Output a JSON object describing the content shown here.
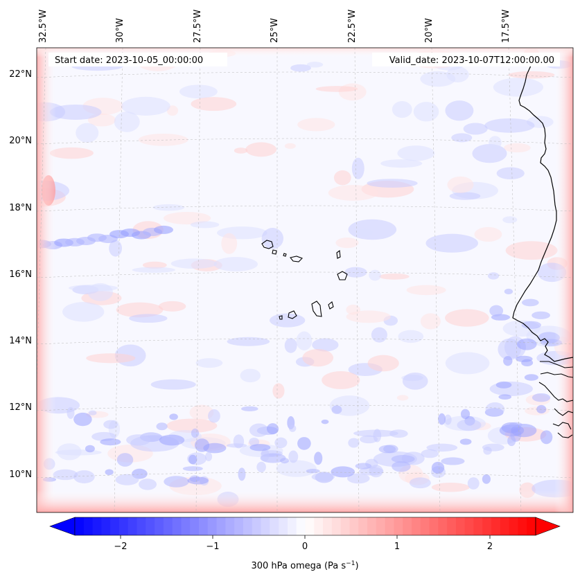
{
  "map": {
    "start_date_text": "Start date: 2023-10-05_00:00:00",
    "valid_date_text": "Valid_date: 2023-10-07T12:00:00.00",
    "lon_labels": [
      "32.5°W",
      "30°W",
      "27.5°W",
      "25°W",
      "22.5°W",
      "20°W",
      "17.5°W"
    ],
    "lat_labels": [
      "22°N",
      "20°N",
      "18°N",
      "16°N",
      "14°N",
      "12°N",
      "10°N"
    ],
    "background_color": "#f7f7ff",
    "coastline_color": "#000000",
    "gridline_style": "dashed light grey"
  },
  "colorbar": {
    "label": "300 hPa omega (Pa s",
    "label_sup": "−1",
    "label_close": ")",
    "ticks": [
      "−2",
      "−1",
      "0",
      "1",
      "2"
    ],
    "range": [
      -2.6,
      2.6
    ],
    "cmap": "bwr",
    "low_color": "#0000ff",
    "mid_color": "#ffffff",
    "high_color": "#ff0000",
    "extend": "both"
  }
}
